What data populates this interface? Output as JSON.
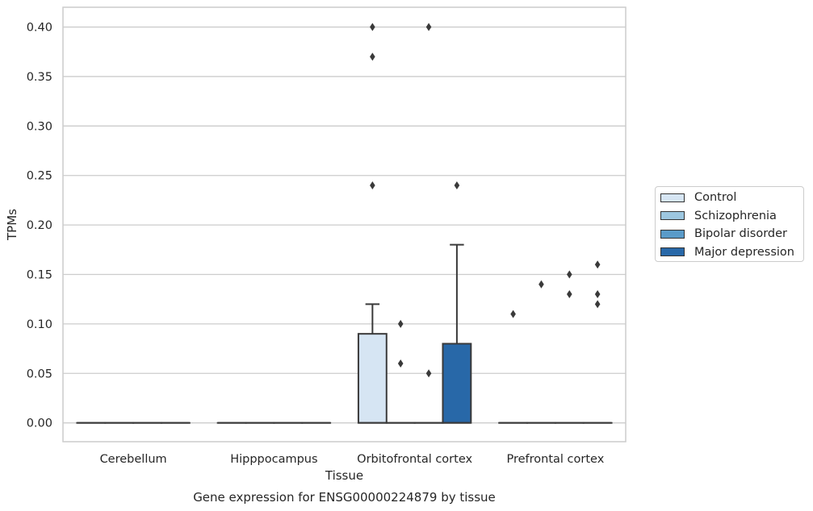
{
  "chart_data": {
    "type": "box",
    "caption": "Gene expression for ENSG00000224879 by tissue",
    "xlabel": "Tissue",
    "ylabel": "TPMs",
    "ylim": [
      -0.019,
      0.42
    ],
    "yticks": [
      0.0,
      0.05,
      0.1,
      0.15,
      0.2,
      0.25,
      0.3,
      0.35,
      0.4
    ],
    "ytick_labels": [
      "0.00",
      "0.05",
      "0.10",
      "0.15",
      "0.20",
      "0.25",
      "0.30",
      "0.35",
      "0.40"
    ],
    "grid": "horizontal",
    "legend_position": "right",
    "categories": [
      "Cerebellum",
      "Hipppocampus",
      "Orbitofrontal cortex",
      "Prefrontal cortex"
    ],
    "series": [
      {
        "name": "Control",
        "color": "#d6e5f3",
        "boxes": [
          {
            "category": "Cerebellum",
            "q1": 0,
            "median": 0,
            "q3": 0,
            "whislo": 0,
            "whishi": 0,
            "fliers": []
          },
          {
            "category": "Hipppocampus",
            "q1": 0,
            "median": 0,
            "q3": 0,
            "whislo": 0,
            "whishi": 0,
            "fliers": []
          },
          {
            "category": "Orbitofrontal cortex",
            "q1": 0,
            "median": 0,
            "q3": 0.09,
            "whislo": 0,
            "whishi": 0.12,
            "fliers": [
              0.24,
              0.37,
              0.4
            ]
          },
          {
            "category": "Prefrontal cortex",
            "q1": 0,
            "median": 0,
            "q3": 0,
            "whislo": 0,
            "whishi": 0,
            "fliers": [
              0.11
            ]
          }
        ]
      },
      {
        "name": "Schizophrenia",
        "color": "#9dc7e0",
        "boxes": [
          {
            "category": "Cerebellum",
            "q1": 0,
            "median": 0,
            "q3": 0,
            "whislo": 0,
            "whishi": 0,
            "fliers": []
          },
          {
            "category": "Hipppocampus",
            "q1": 0,
            "median": 0,
            "q3": 0,
            "whislo": 0,
            "whishi": 0,
            "fliers": []
          },
          {
            "category": "Orbitofrontal cortex",
            "q1": 0,
            "median": 0,
            "q3": 0,
            "whislo": 0,
            "whishi": 0,
            "fliers": [
              0.06,
              0.1
            ]
          },
          {
            "category": "Prefrontal cortex",
            "q1": 0,
            "median": 0,
            "q3": 0,
            "whislo": 0,
            "whishi": 0,
            "fliers": [
              0.14
            ]
          }
        ]
      },
      {
        "name": "Bipolar disorder",
        "color": "#5a9bc9",
        "boxes": [
          {
            "category": "Cerebellum",
            "q1": 0,
            "median": 0,
            "q3": 0,
            "whislo": 0,
            "whishi": 0,
            "fliers": []
          },
          {
            "category": "Hipppocampus",
            "q1": 0,
            "median": 0,
            "q3": 0,
            "whislo": 0,
            "whishi": 0,
            "fliers": []
          },
          {
            "category": "Orbitofrontal cortex",
            "q1": 0,
            "median": 0,
            "q3": 0,
            "whislo": 0,
            "whishi": 0,
            "fliers": [
              0.05,
              0.4
            ]
          },
          {
            "category": "Prefrontal cortex",
            "q1": 0,
            "median": 0,
            "q3": 0,
            "whislo": 0,
            "whishi": 0,
            "fliers": [
              0.13,
              0.15
            ]
          }
        ]
      },
      {
        "name": "Major depression",
        "color": "#2868a8",
        "boxes": [
          {
            "category": "Cerebellum",
            "q1": 0,
            "median": 0,
            "q3": 0,
            "whislo": 0,
            "whishi": 0,
            "fliers": []
          },
          {
            "category": "Hipppocampus",
            "q1": 0,
            "median": 0,
            "q3": 0,
            "whislo": 0,
            "whishi": 0,
            "fliers": []
          },
          {
            "category": "Orbitofrontal cortex",
            "q1": 0,
            "median": 0,
            "q3": 0.08,
            "whislo": 0,
            "whishi": 0.18,
            "fliers": [
              0.24
            ]
          },
          {
            "category": "Prefrontal cortex",
            "q1": 0,
            "median": 0,
            "q3": 0,
            "whislo": 0,
            "whishi": 0,
            "fliers": [
              0.12,
              0.13,
              0.16
            ]
          }
        ]
      }
    ]
  }
}
